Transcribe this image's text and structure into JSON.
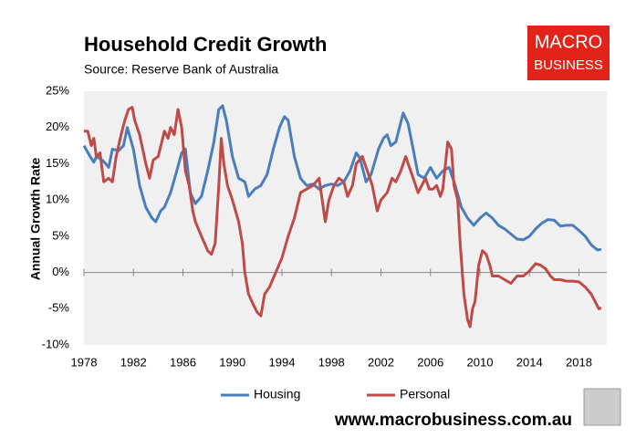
{
  "chart_data": {
    "type": "line",
    "title": "Household Credit Growth",
    "subtitle": "Source: Reserve Bank of Australia",
    "ylabel": "Annual Growth Rate",
    "logo_text": [
      "MACRO",
      "BUSINESS"
    ],
    "website": "www.macrobusiness.com.au",
    "xlim": [
      1978,
      2020.25
    ],
    "xticks": [
      1978,
      1982,
      1986,
      1990,
      1994,
      1998,
      2002,
      2006,
      2010,
      2014,
      2018
    ],
    "ylim": [
      -10,
      25
    ],
    "yticks": [
      {
        "value": -10,
        "label": "-10%"
      },
      {
        "value": -5,
        "label": "-5%"
      },
      {
        "value": 0,
        "label": "0%"
      },
      {
        "value": 5,
        "label": "5%"
      },
      {
        "value": 10,
        "label": "10%"
      },
      {
        "value": 15,
        "label": "15%"
      },
      {
        "value": 20,
        "label": "20%"
      },
      {
        "value": 25,
        "label": "25%"
      }
    ],
    "grid": false,
    "legend": "bottom",
    "series": [
      {
        "name": "Housing",
        "color": "#4a7ebb",
        "x": [
          1978.0,
          1978.5,
          1978.8,
          1979.0,
          1979.5,
          1980.0,
          1980.3,
          1980.8,
          1981.2,
          1981.5,
          1982.0,
          1982.5,
          1983.0,
          1983.5,
          1983.8,
          1984.2,
          1984.5,
          1985.0,
          1985.5,
          1985.9,
          1986.2,
          1986.6,
          1987.0,
          1987.5,
          1988.0,
          1988.5,
          1988.9,
          1989.2,
          1989.5,
          1990.0,
          1990.5,
          1991.0,
          1991.3,
          1991.8,
          1992.3,
          1992.8,
          1993.3,
          1993.8,
          1994.2,
          1994.5,
          1995.0,
          1995.5,
          1996.0,
          1996.5,
          1997.0,
          1997.5,
          1998.0,
          1998.5,
          1999.0,
          1999.5,
          2000.0,
          2000.3,
          2000.8,
          2001.2,
          2001.8,
          2002.2,
          2002.5,
          2002.8,
          2003.2,
          2003.5,
          2003.8,
          2004.2,
          2004.6,
          2005.0,
          2005.5,
          2006.0,
          2006.5,
          2007.0,
          2007.5,
          2008.0,
          2008.5,
          2009.0,
          2009.5,
          2010.0,
          2010.5,
          2011.0,
          2011.5,
          2012.0,
          2012.5,
          2013.0,
          2013.5,
          2014.0,
          2014.5,
          2015.0,
          2015.5,
          2016.0,
          2016.5,
          2017.0,
          2017.5,
          2018.0,
          2018.5,
          2019.0,
          2019.5,
          2019.8
        ],
        "values": [
          17.5,
          16,
          15.2,
          16,
          15.5,
          14.5,
          17,
          16.8,
          17.5,
          20,
          17,
          12,
          9,
          7.5,
          7,
          8.5,
          9,
          11,
          14,
          16.5,
          17,
          11,
          9.5,
          10.5,
          14,
          18,
          22.5,
          23,
          21,
          16,
          13,
          12.5,
          10.5,
          11.5,
          12,
          13.5,
          17,
          20,
          21.5,
          21,
          16,
          13,
          12,
          12.2,
          11.5,
          12,
          12.2,
          12,
          12.5,
          14,
          16.5,
          15.8,
          12.5,
          13.5,
          17,
          18.5,
          19,
          17.5,
          18,
          20,
          22,
          20.5,
          17,
          13.5,
          13,
          14.5,
          13,
          14,
          14.5,
          12,
          9,
          7.5,
          6.5,
          7.5,
          8.2,
          7.5,
          6.5,
          6,
          5.3,
          4.6,
          4.5,
          5,
          6,
          6.8,
          7.3,
          7.2,
          6.4,
          6.5,
          6.5,
          5.8,
          5,
          3.8,
          3.1,
          3.2
        ]
      },
      {
        "name": "Personal",
        "color": "#be4b48",
        "x": [
          1978.0,
          1978.3,
          1978.6,
          1978.8,
          1979.0,
          1979.3,
          1979.6,
          1980.0,
          1980.3,
          1980.6,
          1981.0,
          1981.3,
          1981.6,
          1981.9,
          1982.1,
          1982.5,
          1983.0,
          1983.3,
          1983.6,
          1984.0,
          1984.5,
          1984.8,
          1985.0,
          1985.3,
          1985.6,
          1985.9,
          1986.2,
          1986.5,
          1986.8,
          1987.0,
          1987.5,
          1988.0,
          1988.3,
          1988.6,
          1988.9,
          1989.1,
          1989.3,
          1989.6,
          1990.0,
          1990.5,
          1990.8,
          1991.0,
          1991.3,
          1991.7,
          1992.0,
          1992.3,
          1992.6,
          1993.0,
          1993.5,
          1994.0,
          1994.5,
          1995.0,
          1995.5,
          1996.0,
          1996.5,
          1997.0,
          1997.5,
          1997.8,
          1998.2,
          1998.6,
          1999.0,
          1999.3,
          1999.7,
          2000.0,
          2000.5,
          2000.9,
          2001.3,
          2001.7,
          2002.0,
          2002.5,
          2002.9,
          2003.2,
          2003.6,
          2004.0,
          2004.3,
          2004.6,
          2005.0,
          2005.3,
          2005.6,
          2005.9,
          2006.2,
          2006.5,
          2006.8,
          2007.0,
          2007.4,
          2007.7,
          2007.9,
          2008.2,
          2008.4,
          2008.7,
          2009.0,
          2009.2,
          2009.4,
          2009.6,
          2009.9,
          2010.2,
          2010.5,
          2010.8,
          2011.0,
          2011.5,
          2012.0,
          2012.5,
          2013.0,
          2013.5,
          2014.0,
          2014.5,
          2014.9,
          2015.3,
          2015.7,
          2016.0,
          2016.5,
          2017.0,
          2017.5,
          2018.0,
          2018.5,
          2019.0,
          2019.3,
          2019.6,
          2019.8
        ],
        "values": [
          19.5,
          19.5,
          17.5,
          18.5,
          16,
          16.5,
          12.5,
          13,
          12.5,
          16,
          19,
          21,
          22.5,
          22.8,
          21,
          19,
          15,
          13,
          15.5,
          16,
          19.5,
          18.5,
          20,
          19,
          22.5,
          20,
          14,
          12,
          8.5,
          7,
          5,
          3,
          2.5,
          4,
          12,
          18.5,
          15,
          12,
          10,
          7,
          4,
          0,
          -3,
          -4.5,
          -5.5,
          -6,
          -3,
          -2,
          0,
          2,
          5,
          7.5,
          11,
          11.5,
          12,
          13,
          7,
          10,
          12,
          13,
          12.5,
          10.5,
          12,
          15,
          16,
          14,
          12,
          8.5,
          10,
          11,
          13,
          12.5,
          14,
          16,
          14.5,
          13,
          11,
          12,
          13,
          11.5,
          11.5,
          12,
          10.5,
          11.5,
          18,
          17,
          12,
          10,
          4,
          -3,
          -6.5,
          -7.5,
          -5,
          -4,
          1,
          3,
          2.5,
          1,
          -0.5,
          -0.5,
          -1,
          -1.5,
          -0.5,
          -0.5,
          0.2,
          1.2,
          1,
          0.5,
          -0.5,
          -1,
          -1,
          -1.2,
          -1.2,
          -1.3,
          -2,
          -3,
          -4,
          -5,
          -4.9
        ]
      }
    ]
  }
}
